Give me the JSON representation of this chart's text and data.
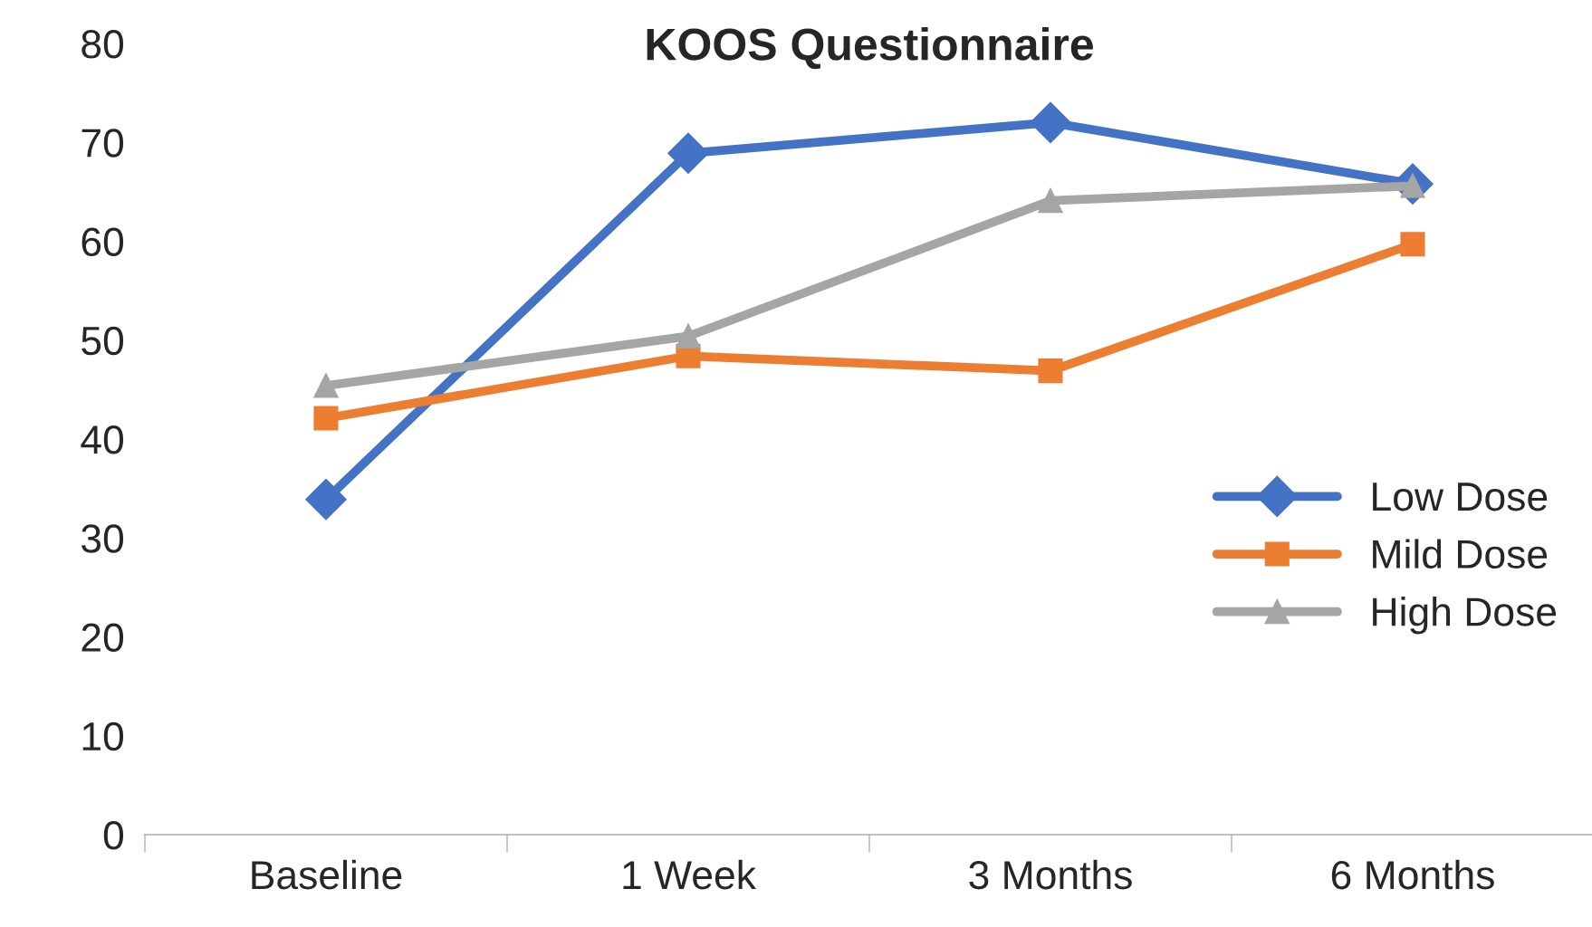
{
  "chart_data": {
    "type": "line",
    "title": "KOOS Questionnaire",
    "categories": [
      "Baseline",
      "1 Week",
      "3 Months",
      "6 Months"
    ],
    "series": [
      {
        "name": "Low Dose",
        "color": "#4472c4",
        "marker": "diamond",
        "values": [
          33.9,
          68.9,
          72.0,
          65.8
        ]
      },
      {
        "name": "Mild Dose",
        "color": "#ed7d31",
        "marker": "square",
        "values": [
          42.1,
          48.4,
          46.9,
          59.7
        ]
      },
      {
        "name": "High Dose",
        "color": "#a5a5a5",
        "marker": "triangle",
        "values": [
          45.4,
          50.4,
          64.1,
          65.6
        ]
      }
    ],
    "ylim": [
      0,
      80
    ],
    "yticks": [
      0,
      10,
      20,
      30,
      40,
      50,
      60,
      70,
      80
    ],
    "grid": false,
    "legend": "right",
    "line_style": "solid"
  }
}
